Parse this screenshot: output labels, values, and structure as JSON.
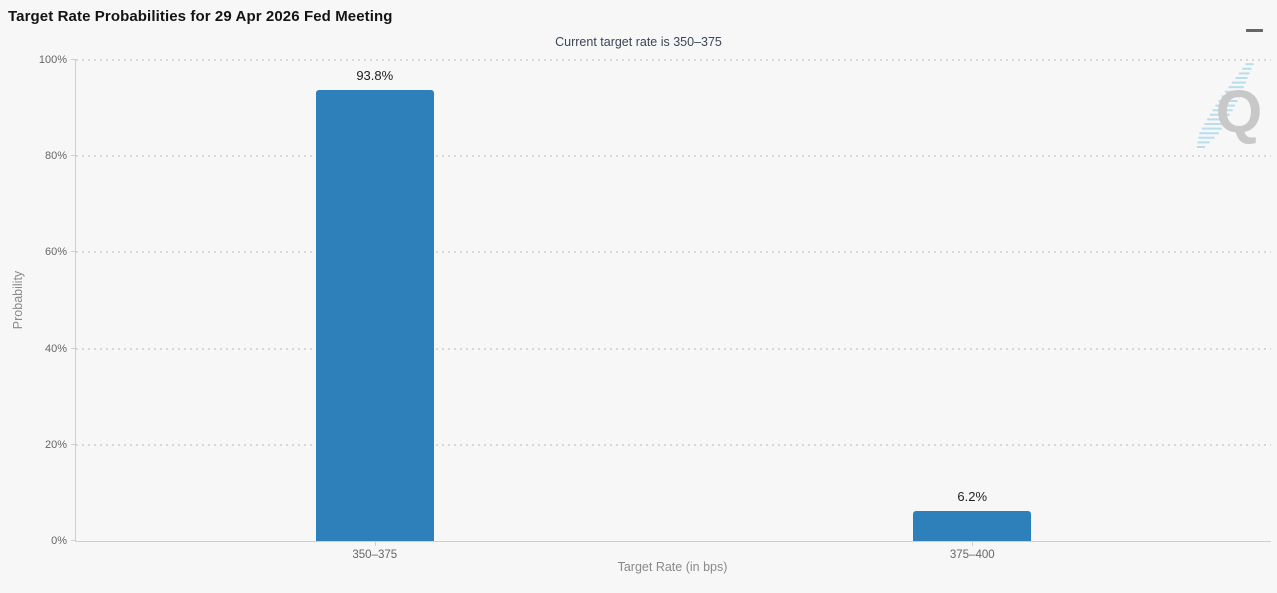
{
  "chart": {
    "title": "Target Rate Probabilities for 29 Apr 2026 Fed Meeting",
    "subtitle": "Current target rate is 350–375",
    "menu_icon": "hamburger-menu-icon",
    "watermark_letter": "Q",
    "colors": {
      "background": "#f7f7f7",
      "bar": "#2d80b9",
      "grid": "#d8d8d8",
      "axis": "#cfcfcf",
      "tick_text": "#666666",
      "axis_title_text": "#8a8a8a",
      "subtitle_text": "#3a4658",
      "watermark_grey": "#c4c4c4",
      "watermark_blue": "#a5d5e8"
    }
  },
  "chart_data": {
    "type": "bar",
    "title": "Target Rate Probabilities for 29 Apr 2026 Fed Meeting",
    "subtitle": "Current target rate is 350–375",
    "categories": [
      "350–375",
      "375–400"
    ],
    "values": [
      93.8,
      6.2
    ],
    "value_labels": [
      "93.8%",
      "6.2%"
    ],
    "xlabel": "Target Rate (in bps)",
    "ylabel": "Probability",
    "ylim": [
      0,
      100
    ],
    "yticks_percent": [
      0,
      20,
      40,
      60,
      80,
      100
    ],
    "ytick_labels": [
      "0%",
      "20%",
      "40%",
      "60%",
      "80%",
      "100%"
    ],
    "grid": "dotted horizontal gridlines, on",
    "legend": "none",
    "bar_color": "#2d80b9"
  }
}
